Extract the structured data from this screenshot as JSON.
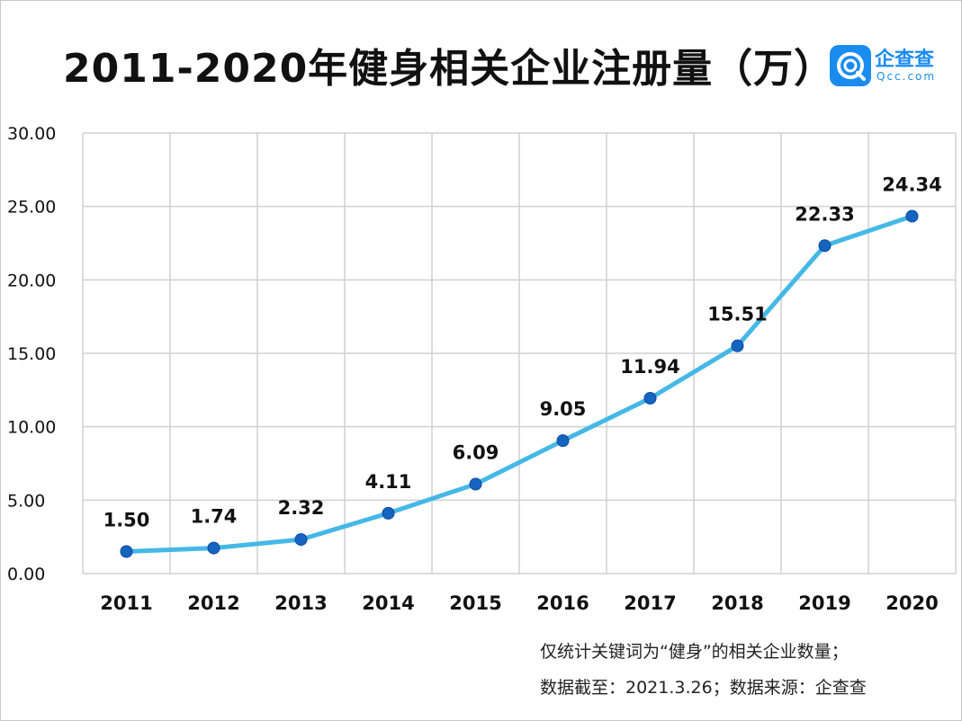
{
  "header": {
    "title": "2011-2020年健身相关企业注册量（万）",
    "brand_name": "企查查",
    "brand_url": "Qcc.com"
  },
  "footnotes": {
    "line1": "仅统计关键词为“健身”的相关企业数量；",
    "line2": "数据截至：2021.3.26；数据来源：企查查"
  },
  "colors": {
    "line": "#45b8e6",
    "marker": "#1565c0",
    "grid": "#d0d0d0",
    "brand": "#1a8cf0"
  },
  "chart_data": {
    "type": "line",
    "categories": [
      "2011",
      "2012",
      "2013",
      "2014",
      "2015",
      "2016",
      "2017",
      "2018",
      "2019",
      "2020"
    ],
    "series": [
      {
        "values": [
          1.5,
          1.74,
          2.32,
          4.11,
          6.09,
          9.05,
          11.94,
          15.51,
          22.33,
          24.34
        ]
      }
    ],
    "data_labels": [
      "1.50",
      "1.74",
      "2.32",
      "4.11",
      "6.09",
      "9.05",
      "11.94",
      "15.51",
      "22.33",
      "24.34"
    ],
    "ylim": [
      0,
      30
    ],
    "yticks": [
      0,
      5,
      10,
      15,
      20,
      25,
      30
    ],
    "ytick_labels": [
      "0.00",
      "5.00",
      "10.00",
      "15.00",
      "20.00",
      "25.00",
      "30.00"
    ],
    "grid": true,
    "legend": "none"
  }
}
